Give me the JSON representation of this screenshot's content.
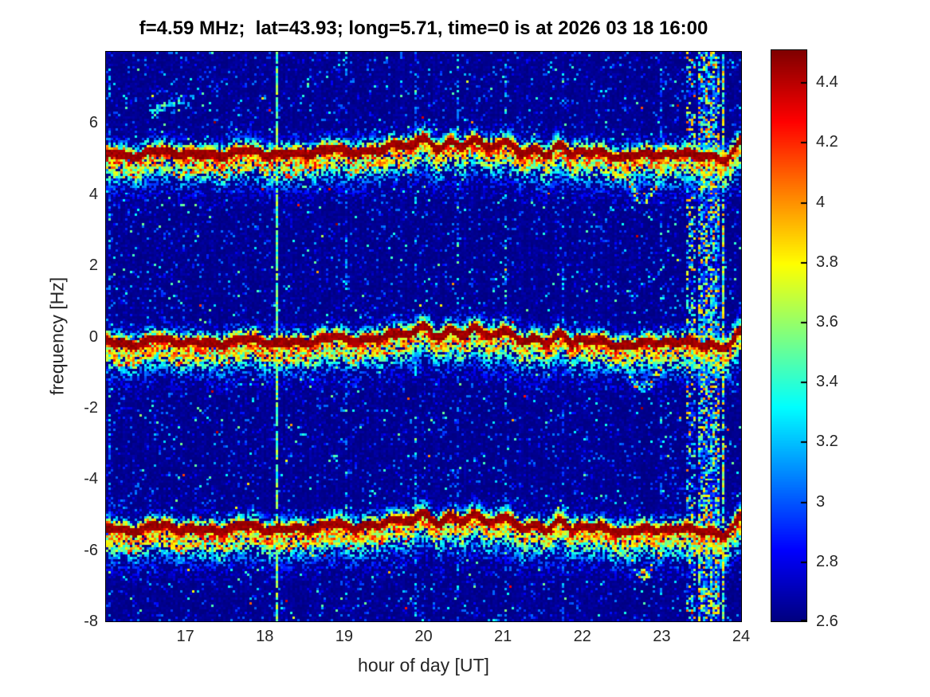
{
  "page": {
    "background": "#ffffff"
  },
  "chart_data": {
    "type": "heatmap",
    "title": "f=4.59 MHz;  lat=43.93; long=5.71, time=0 is at 2026 03 18 16:00",
    "xlabel": "hour of day [UT]",
    "ylabel": "frequency [Hz]",
    "xlim": [
      16,
      24
    ],
    "ylim": [
      -8,
      8
    ],
    "xticks": [
      17,
      18,
      19,
      20,
      21,
      22,
      23,
      24
    ],
    "yticks": [
      6,
      4,
      2,
      0,
      -2,
      -4,
      -6,
      -8
    ],
    "grid": false,
    "legend": "colorbar-right",
    "colormap": "jet",
    "color_axis": {
      "min": 2.6,
      "max": 4.507,
      "ticks": [
        4.4,
        4.2,
        4,
        3.8,
        3.6,
        3.4,
        3.2,
        3,
        2.8,
        2.6
      ]
    },
    "title_color": "#000000",
    "text_color": "#262626",
    "background_level": 2.65,
    "doppler_bands": {
      "description": "three horizontal wavy spectral traces (multi-hop Doppler lines) over dark blue noise",
      "center_offsets_hz": [
        5.15,
        -0.15,
        -5.4
      ],
      "trace_peak_value": 4.5,
      "bump": {
        "center_hour": 20.3,
        "height_hz": 0.3,
        "width_hour": 0.75
      },
      "dip": {
        "center_hour": 22.78,
        "depth_hz": 1.3,
        "width_hour": 0.17
      },
      "edge_dip": {
        "center_hour": 23.83,
        "depth_hz": 0.3
      },
      "edge_hook": {
        "center_hour": 24.1,
        "height_hz": 0.55
      },
      "secondary_trace": {
        "offset_hz": -0.48,
        "visible_until_hour": 20
      }
    },
    "interference": {
      "solid_vertical_lines_hours": [
        18.16,
        23.77
      ],
      "dotted_vertical_lines_hours": [
        16.04,
        19.02,
        19.9,
        20.43,
        21.05,
        21.77,
        23.0
      ],
      "noise_columns": [
        {
          "from_hour": 23.3,
          "to_hour": 23.43,
          "density": 0.45
        },
        {
          "from_hour": 23.46,
          "to_hour": 23.72,
          "density": 0.72
        }
      ],
      "diagonal_streak": {
        "from": [
          16.55,
          6.3
        ],
        "to": [
          17.55,
          7.1
        ]
      }
    },
    "noise_seed": 42
  }
}
